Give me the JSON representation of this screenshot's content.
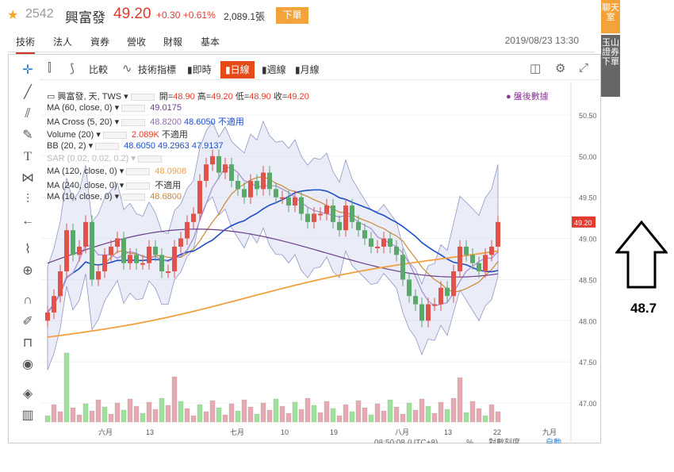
{
  "stock": {
    "code": "2542",
    "name": "興富發",
    "price": "49.20",
    "change": "+0.30",
    "change_pct": "+0.61%",
    "volume": "2,089.1張",
    "order_label": "下單"
  },
  "tabs": [
    "技術",
    "法人",
    "資券",
    "營收",
    "財報",
    "基本"
  ],
  "timestamp": "2019/08/23 13:30",
  "side_buttons": [
    "聊天室",
    "玉山證券下單"
  ],
  "toolbar": {
    "compare": "比較",
    "indicators": "技術指標",
    "intraday": "即時",
    "daily": "日線",
    "weekly": "週線",
    "monthly": "月線"
  },
  "legend": {
    "main": "興富發, 天, TWS",
    "open_label": "開=",
    "open": "48.90",
    "high_label": "高=",
    "high": "49.20",
    "low_label": "低=",
    "low": "48.90",
    "close_label": "收=",
    "close": "49.20",
    "ma60": "MA (60, close, 0)",
    "ma60_val": "49.0175",
    "macross": "MA Cross (5, 20)",
    "macross_v1": "48.8200",
    "macross_v2": "48.6050",
    "macross_na": "不適用",
    "volume": "Volume (20)",
    "volume_val": "2.089K",
    "volume_na": "不適用",
    "bb": "BB (20, 2)",
    "bb_v1": "48.6050",
    "bb_v2": "49.2963",
    "bb_v3": "47.9137",
    "sar": "SAR (0.02, 0.02, 0.2)",
    "ma120": "MA (120, close, 0)",
    "ma120_val": "48.0908",
    "ma240": "MA (240, close, 0)",
    "ma240_val": "不適用",
    "ma10": "MA (10, close, 0)",
    "ma10_val": "48.6800"
  },
  "after_hours": "盤後數據",
  "price_axis": [
    "50.50",
    "50.00",
    "49.50",
    "49.00",
    "48.50",
    "48.00",
    "47.50",
    "47.00"
  ],
  "current_price_tag": "49.20",
  "x_labels": [
    "六月",
    "13",
    "七月",
    "10",
    "19",
    "八月",
    "13",
    "22",
    "九月"
  ],
  "status": {
    "time": "08:50:08 (UTC+8)",
    "pct": "%",
    "scale": "對數刻度",
    "auto": "自動"
  },
  "annotation": "48.7"
}
